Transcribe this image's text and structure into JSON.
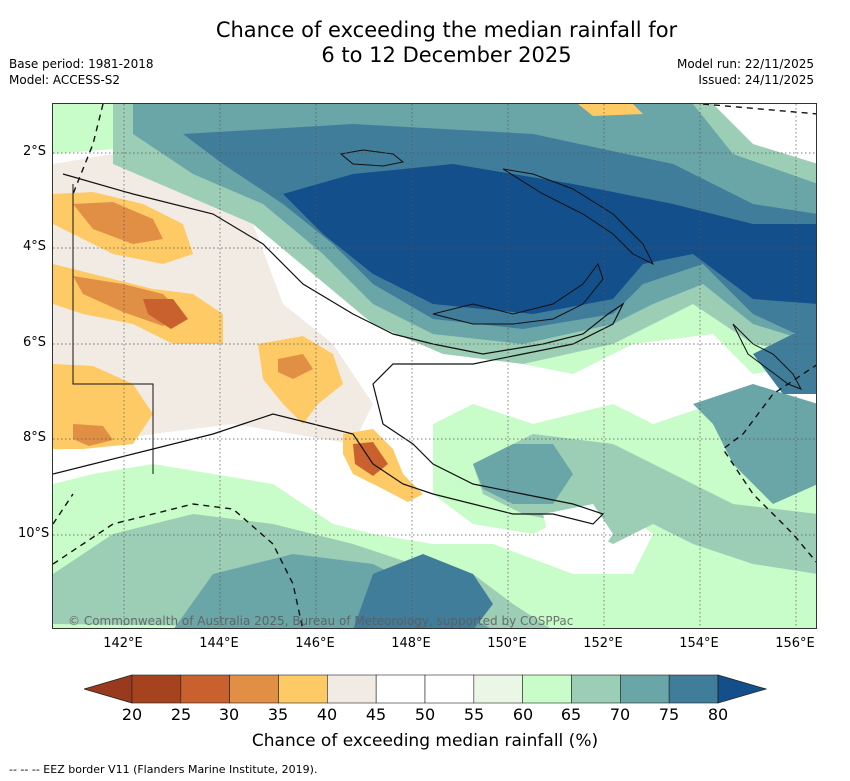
{
  "title": {
    "line1": "Chance of exceeding the median rainfall for",
    "line2": "6 to 12 December 2025"
  },
  "meta_left": {
    "base_period": "Base period: 1981-2018",
    "model": "Model: ACCESS-S2"
  },
  "meta_right": {
    "model_run": "Model run: 22/11/2025",
    "issued": "Issued: 24/11/2025"
  },
  "map": {
    "longitude_ticks": [
      "142°E",
      "144°E",
      "146°E",
      "148°E",
      "150°E",
      "152°E",
      "154°E",
      "156°E"
    ],
    "latitude_ticks": [
      "2°S",
      "4°S",
      "6°S",
      "8°S",
      "10°S"
    ],
    "copyright": "© Commonwealth of Australia 2025, Bureau of Meteorology, supported by COSPPac"
  },
  "colorbar": {
    "title": "Chance of exceeding median rainfall (%)",
    "labels": [
      "20",
      "25",
      "30",
      "35",
      "40",
      "45",
      "50",
      "55",
      "60",
      "65",
      "70",
      "75",
      "80"
    ],
    "colors": [
      "#a5431f",
      "#c9612f",
      "#e18f45",
      "#fdca66",
      "#f1ebe3",
      "#ffffff",
      "#ffffff",
      "#eaf6e6",
      "#c8fcc8",
      "#9ccdb5",
      "#6aa5a8",
      "#407d9a"
    ],
    "under_color": "#99391d",
    "over_color": "#134f8a"
  },
  "footer": {
    "eez_note": "-- -- -- EEZ border V11 (Flanders Marine Institute, 2019)."
  }
}
